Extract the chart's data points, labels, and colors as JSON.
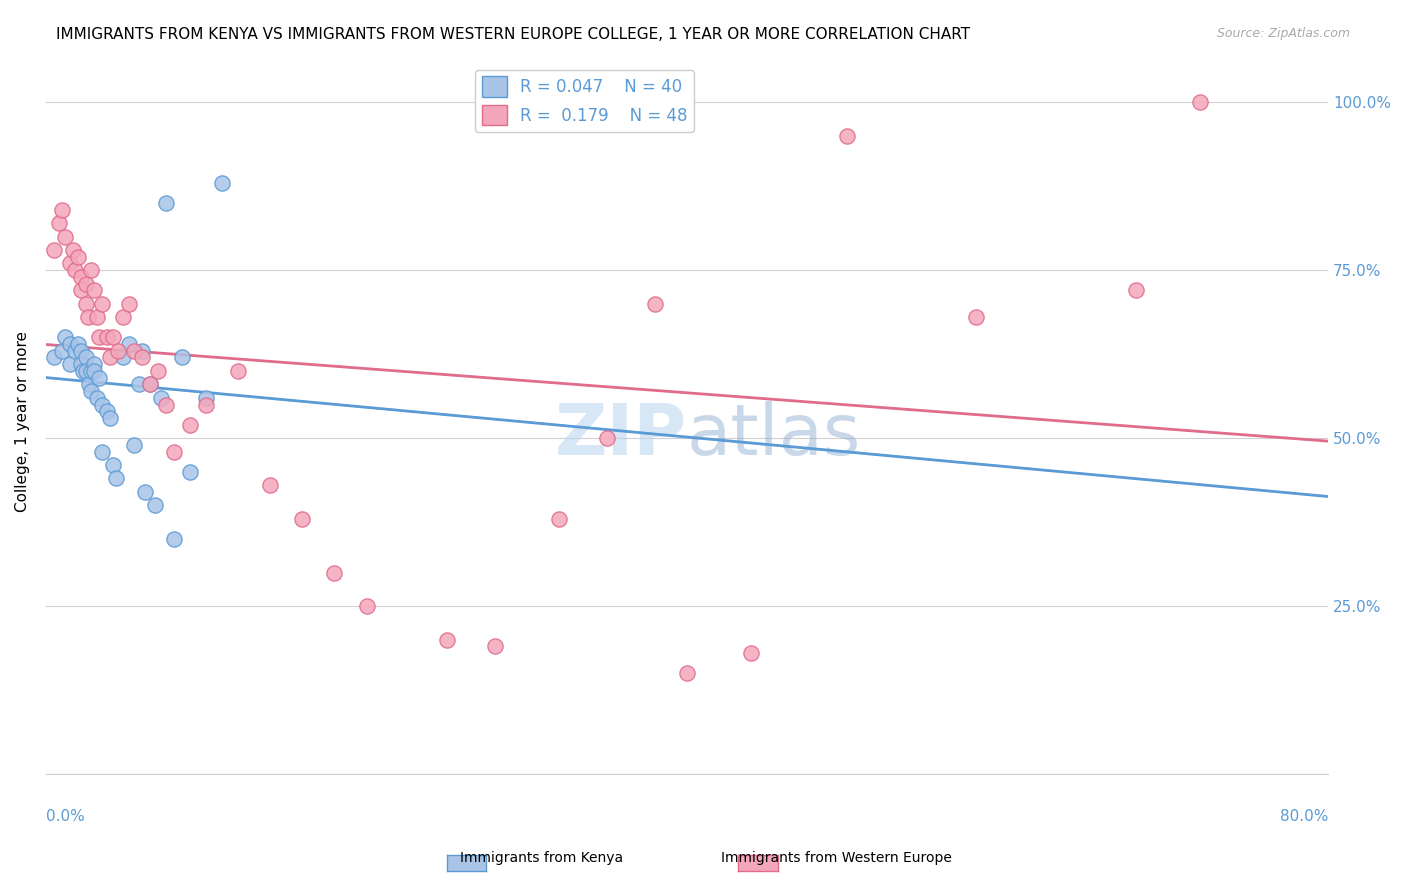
{
  "title": "IMMIGRANTS FROM KENYA VS IMMIGRANTS FROM WESTERN EUROPE COLLEGE, 1 YEAR OR MORE CORRELATION CHART",
  "source": "Source: ZipAtlas.com",
  "ylabel": "College, 1 year or more",
  "legend_label1": "Immigrants from Kenya",
  "legend_label2": "Immigrants from Western Europe",
  "R1": 0.047,
  "N1": 40,
  "R2": 0.179,
  "N2": 48,
  "color_kenya": "#aac4e8",
  "color_kenya_line": "#5b9bd5",
  "color_europe": "#f4a7bb",
  "color_europe_line": "#e06b8b",
  "color_axis": "#5b9bd5",
  "xlim": [
    0.0,
    0.8
  ],
  "ylim": [
    0.0,
    1.05
  ],
  "yticks": [
    0.0,
    0.25,
    0.5,
    0.75,
    1.0
  ],
  "ytick_labels": [
    "",
    "25.0%",
    "50.0%",
    "75.0%",
    "100.0%"
  ],
  "watermark_zip": "ZIP",
  "watermark_atlas": "atlas",
  "kenya_x": [
    0.005,
    0.01,
    0.012,
    0.015,
    0.015,
    0.018,
    0.02,
    0.022,
    0.022,
    0.023,
    0.025,
    0.025,
    0.027,
    0.028,
    0.028,
    0.03,
    0.03,
    0.032,
    0.033,
    0.035,
    0.035,
    0.038,
    0.04,
    0.042,
    0.044,
    0.048,
    0.052,
    0.055,
    0.058,
    0.06,
    0.062,
    0.065,
    0.068,
    0.072,
    0.075,
    0.08,
    0.085,
    0.09,
    0.1,
    0.11
  ],
  "kenya_y": [
    0.62,
    0.63,
    0.65,
    0.64,
    0.61,
    0.63,
    0.64,
    0.63,
    0.61,
    0.6,
    0.62,
    0.6,
    0.58,
    0.6,
    0.57,
    0.61,
    0.6,
    0.56,
    0.59,
    0.55,
    0.48,
    0.54,
    0.53,
    0.46,
    0.44,
    0.62,
    0.64,
    0.49,
    0.58,
    0.63,
    0.42,
    0.58,
    0.4,
    0.56,
    0.85,
    0.35,
    0.62,
    0.45,
    0.56,
    0.88
  ],
  "europe_x": [
    0.005,
    0.008,
    0.01,
    0.012,
    0.015,
    0.017,
    0.018,
    0.02,
    0.022,
    0.022,
    0.025,
    0.025,
    0.026,
    0.028,
    0.03,
    0.032,
    0.033,
    0.035,
    0.038,
    0.04,
    0.042,
    0.045,
    0.048,
    0.052,
    0.055,
    0.06,
    0.065,
    0.07,
    0.075,
    0.08,
    0.09,
    0.1,
    0.12,
    0.14,
    0.16,
    0.18,
    0.2,
    0.25,
    0.28,
    0.32,
    0.35,
    0.38,
    0.4,
    0.44,
    0.5,
    0.58,
    0.68,
    0.72
  ],
  "europe_y": [
    0.78,
    0.82,
    0.84,
    0.8,
    0.76,
    0.78,
    0.75,
    0.77,
    0.74,
    0.72,
    0.73,
    0.7,
    0.68,
    0.75,
    0.72,
    0.68,
    0.65,
    0.7,
    0.65,
    0.62,
    0.65,
    0.63,
    0.68,
    0.7,
    0.63,
    0.62,
    0.58,
    0.6,
    0.55,
    0.48,
    0.52,
    0.55,
    0.6,
    0.43,
    0.38,
    0.3,
    0.25,
    0.2,
    0.19,
    0.38,
    0.5,
    0.7,
    0.15,
    0.18,
    0.95,
    0.68,
    0.72,
    1.0
  ]
}
